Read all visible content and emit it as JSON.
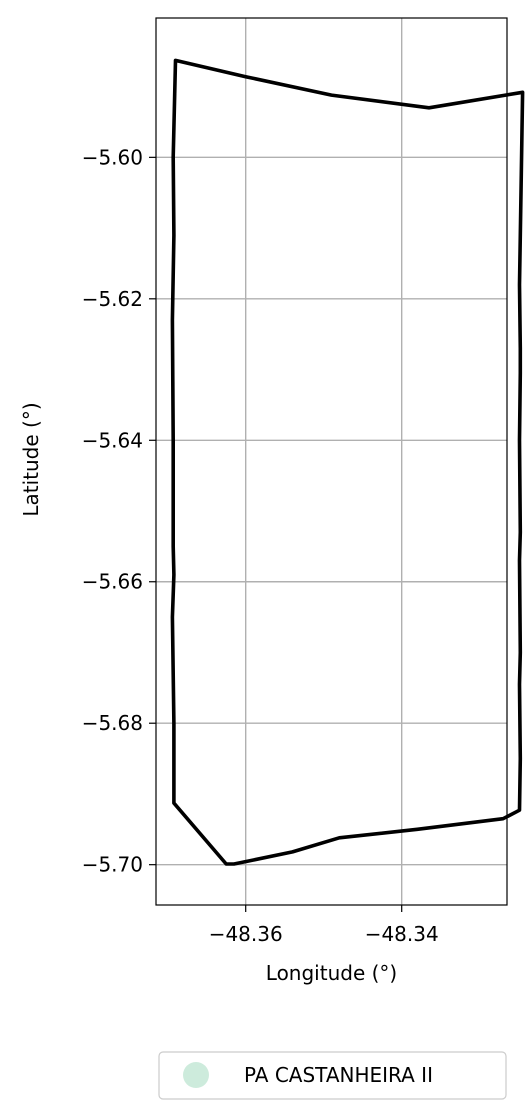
{
  "chart_data": {
    "type": "line",
    "title": "",
    "xlabel": "Longitude (°)",
    "ylabel": "Latitude (°)",
    "xlim": [
      -48.3715,
      -48.3265
    ],
    "ylim": [
      -5.7057,
      -5.5803
    ],
    "xticks": [
      -48.36,
      -48.34
    ],
    "xtick_labels": [
      "−48.36",
      "−48.34"
    ],
    "yticks": [
      -5.6,
      -5.62,
      -5.64,
      -5.66,
      -5.68,
      -5.7
    ],
    "ytick_labels": [
      "−5.60",
      "−5.62",
      "−5.64",
      "−5.66",
      "−5.68",
      "−5.70"
    ],
    "grid": true,
    "legend_position": "bottom-right, below axes",
    "series": [
      {
        "name": "PA CASTANHEIRA II",
        "color": "#000000",
        "legend_color": "#cdebdc",
        "x": [
          -48.369,
          -48.36,
          -48.349,
          -48.3365,
          -48.3245,
          -48.3247,
          -48.3249,
          -48.3248,
          -48.3248,
          -48.3249,
          -48.3248,
          -48.3249,
          -48.3248,
          -48.3249,
          -48.3248,
          -48.3249,
          -48.327,
          -48.338,
          -48.348,
          -48.354,
          -48.3615,
          -48.3625,
          -48.3692,
          -48.3692,
          -48.3694,
          -48.3692,
          -48.3693,
          -48.3693,
          -48.3694,
          -48.3692,
          -48.3693,
          -48.369
        ],
        "y": [
          -5.5863,
          -5.5886,
          -5.5912,
          -5.593,
          -5.5908,
          -5.605,
          -5.618,
          -5.627,
          -5.6305,
          -5.64,
          -5.653,
          -5.657,
          -5.67,
          -5.6745,
          -5.685,
          -5.6923,
          -5.6935,
          -5.695,
          -5.6962,
          -5.6982,
          -5.6999,
          -5.6999,
          -5.6913,
          -5.68,
          -5.665,
          -5.659,
          -5.655,
          -5.64,
          -5.623,
          -5.611,
          -5.6,
          -5.5863
        ]
      }
    ]
  }
}
